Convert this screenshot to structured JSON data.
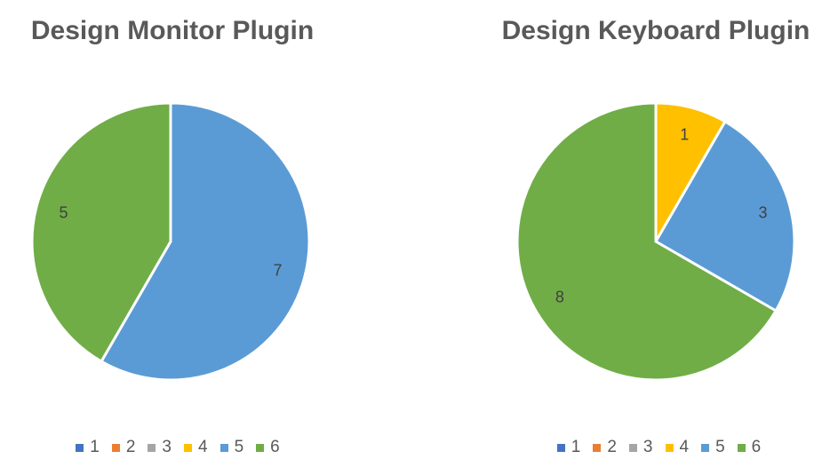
{
  "chart_data": [
    {
      "type": "pie",
      "title": "Design Monitor Plugin",
      "slices": [
        {
          "label": "5",
          "value": 7,
          "color": "#5B9BD5"
        },
        {
          "label": "6",
          "value": 5,
          "color": "#70AD47"
        }
      ],
      "legend": {
        "placement": "bottom",
        "entries": [
          {
            "label": "1",
            "color": "#4472C4"
          },
          {
            "label": "2",
            "color": "#ED7D31"
          },
          {
            "label": "3",
            "color": "#A5A5A5"
          },
          {
            "label": "4",
            "color": "#FFC000"
          },
          {
            "label": "5",
            "color": "#5B9BD5"
          },
          {
            "label": "6",
            "color": "#70AD47"
          }
        ]
      }
    },
    {
      "type": "pie",
      "title": "Design Keyboard Plugin",
      "slices": [
        {
          "label": "4",
          "value": 1,
          "color": "#FFC000"
        },
        {
          "label": "5",
          "value": 3,
          "color": "#5B9BD5"
        },
        {
          "label": "6",
          "value": 8,
          "color": "#70AD47"
        }
      ],
      "legend": {
        "placement": "bottom",
        "entries": [
          {
            "label": "1",
            "color": "#4472C4"
          },
          {
            "label": "2",
            "color": "#ED7D31"
          },
          {
            "label": "3",
            "color": "#A5A5A5"
          },
          {
            "label": "4",
            "color": "#FFC000"
          },
          {
            "label": "5",
            "color": "#5B9BD5"
          },
          {
            "label": "6",
            "color": "#70AD47"
          }
        ]
      }
    }
  ]
}
